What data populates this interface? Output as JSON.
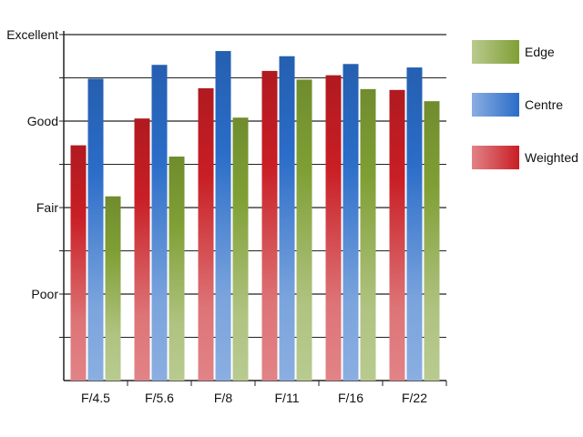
{
  "chart_data": {
    "type": "bar",
    "categories": [
      "F/4.5",
      "F/5.6",
      "F/8",
      "F/11",
      "F/16",
      "F/22"
    ],
    "series": [
      {
        "name": "Weighted",
        "values": [
          2.72,
          3.03,
          3.38,
          3.58,
          3.53,
          3.36
        ],
        "color": "#c81e24"
      },
      {
        "name": "Centre",
        "values": [
          3.49,
          3.65,
          3.81,
          3.75,
          3.66,
          3.62
        ],
        "color": "#2a6cc8"
      },
      {
        "name": "Edge",
        "values": [
          2.13,
          2.59,
          3.04,
          3.48,
          3.37,
          3.23
        ],
        "color": "#7f9f34"
      }
    ],
    "y_ticks": [
      {
        "value": 1,
        "label": "Poor"
      },
      {
        "value": 2,
        "label": "Fair"
      },
      {
        "value": 3,
        "label": "Good"
      },
      {
        "value": 4,
        "label": "Excellent"
      }
    ],
    "ylim": [
      0,
      4
    ],
    "grid": true,
    "legend_position": "right",
    "legend_order": [
      "Edge",
      "Centre",
      "Weighted"
    ]
  }
}
